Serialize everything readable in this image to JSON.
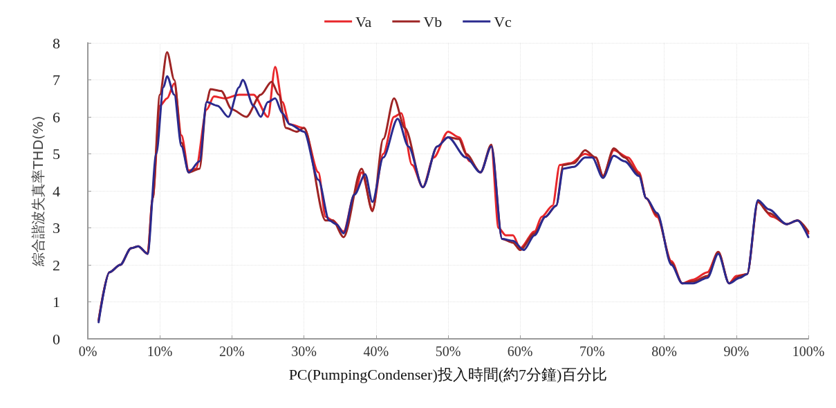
{
  "chart_data": {
    "type": "line",
    "xlabel": "PC(PumpingCondenser)投入時間(約7分鐘)百分比",
    "ylabel": "綜合諧波失真率THD(%)",
    "xlim": [
      0,
      100
    ],
    "xticks": [
      {
        "value": 0,
        "label": "0%"
      },
      {
        "value": 10,
        "label": "10%"
      },
      {
        "value": 20,
        "label": "20%"
      },
      {
        "value": 30,
        "label": "30%"
      },
      {
        "value": 40,
        "label": "40%"
      },
      {
        "value": 50,
        "label": "50%"
      },
      {
        "value": 60,
        "label": "60%"
      },
      {
        "value": 70,
        "label": "70%"
      },
      {
        "value": 80,
        "label": "80%"
      },
      {
        "value": 90,
        "label": "90%"
      },
      {
        "value": 100,
        "label": "100%"
      }
    ],
    "ylim": [
      0,
      8
    ],
    "yticks": [
      0,
      1,
      2,
      3,
      4,
      5,
      6,
      7,
      8
    ],
    "grid": true,
    "legend": "top",
    "marker": "none",
    "line_style": "solid",
    "series": [
      {
        "name": "Va",
        "color": "#e8262a",
        "x": [
          1.5,
          3,
          4.5,
          6,
          7,
          8.3,
          9,
          10,
          11,
          12,
          13,
          14,
          15,
          16.5,
          17.5,
          19,
          21,
          23,
          25,
          26,
          27,
          28,
          30,
          32,
          33,
          34,
          35.5,
          37,
          38,
          39.5,
          41,
          42.5,
          43.5,
          45,
          46.5,
          48,
          50,
          51.5,
          53,
          54.5,
          56,
          57,
          58,
          59,
          60,
          62,
          63,
          64.5,
          65.5,
          67,
          69,
          70.5,
          71.5,
          73,
          75,
          76.5,
          77.5,
          79,
          81,
          82.5,
          84,
          86,
          87.5,
          89,
          90,
          91.5,
          93,
          95,
          97,
          98.5,
          100
        ],
        "values": [
          0.5,
          1.8,
          2.0,
          2.45,
          2.5,
          2.3,
          3.8,
          6.3,
          6.5,
          6.9,
          5.5,
          4.55,
          4.6,
          6.2,
          6.55,
          6.5,
          6.6,
          6.6,
          6.0,
          7.35,
          6.4,
          5.8,
          5.7,
          4.5,
          3.3,
          3.2,
          2.9,
          3.9,
          4.5,
          3.5,
          5.0,
          6.0,
          6.1,
          4.7,
          4.1,
          4.9,
          5.6,
          5.45,
          4.8,
          4.5,
          5.2,
          3.0,
          2.8,
          2.8,
          2.45,
          2.9,
          3.3,
          3.6,
          4.7,
          4.75,
          5.0,
          4.9,
          4.4,
          5.1,
          4.9,
          4.5,
          3.8,
          3.3,
          2.1,
          1.5,
          1.6,
          1.8,
          2.35,
          1.5,
          1.7,
          1.75,
          3.7,
          3.3,
          3.1,
          3.2,
          2.85
        ]
      },
      {
        "name": "Vb",
        "color": "#9e2424",
        "x": [
          1.5,
          3,
          4.5,
          6,
          7,
          8.3,
          9,
          10,
          11,
          12,
          13,
          14,
          15.5,
          16.5,
          17,
          18.5,
          20,
          22,
          24,
          25.5,
          26.5,
          27.5,
          29,
          30,
          33,
          34,
          35.5,
          38,
          39.5,
          41,
          42.5,
          44,
          46.5,
          48.5,
          50,
          51.5,
          52.5,
          54.5,
          56,
          57.5,
          59,
          60,
          62,
          63.5,
          65,
          66,
          67.5,
          69,
          70.5,
          71.5,
          73,
          74.5,
          76.5,
          77.5,
          79,
          81,
          82.5,
          84,
          86,
          87.5,
          89,
          90.5,
          91.5,
          93,
          94.5,
          97,
          98.5,
          100
        ],
        "values": [
          0.5,
          1.8,
          2.0,
          2.45,
          2.5,
          2.3,
          3.8,
          6.6,
          7.75,
          7.0,
          5.3,
          4.5,
          4.6,
          6.4,
          6.75,
          6.7,
          6.2,
          6.0,
          6.6,
          6.95,
          6.6,
          5.7,
          5.6,
          5.7,
          3.2,
          3.2,
          2.75,
          4.6,
          3.45,
          5.4,
          6.5,
          5.7,
          4.1,
          5.2,
          5.45,
          5.4,
          5.0,
          4.5,
          5.25,
          2.7,
          2.6,
          2.4,
          2.85,
          3.3,
          3.6,
          4.7,
          4.75,
          5.1,
          4.9,
          4.4,
          5.15,
          4.9,
          4.45,
          3.8,
          3.35,
          2.05,
          1.5,
          1.55,
          1.7,
          2.35,
          1.5,
          1.7,
          1.75,
          3.7,
          3.4,
          3.1,
          3.2,
          2.9
        ]
      },
      {
        "name": "Vc",
        "color": "#2a2a8e",
        "x": [
          1.5,
          3,
          4.5,
          6,
          7,
          8.3,
          9.5,
          10.5,
          11,
          12,
          13,
          14,
          15.5,
          16.5,
          18,
          19.5,
          21,
          21.5,
          23,
          24,
          25,
          26,
          27,
          28,
          30,
          32,
          33.5,
          34.5,
          35.5,
          37,
          38.5,
          39.5,
          41,
          43,
          44.5,
          46.5,
          48.5,
          50,
          52.5,
          54.5,
          56,
          57.5,
          59,
          60.5,
          62,
          63.5,
          65,
          66,
          67.5,
          69,
          70,
          71.5,
          73,
          74.5,
          76.5,
          77.5,
          79,
          81,
          82.5,
          84,
          86,
          87.5,
          89,
          90.5,
          91.5,
          93,
          94.5,
          97,
          98.5,
          100
        ],
        "values": [
          0.45,
          1.8,
          2.0,
          2.45,
          2.5,
          2.3,
          5.0,
          6.8,
          7.1,
          6.6,
          5.2,
          4.5,
          4.8,
          6.4,
          6.3,
          6.0,
          6.8,
          7.0,
          6.3,
          6.0,
          6.4,
          6.5,
          6.1,
          5.8,
          5.6,
          4.3,
          3.2,
          3.1,
          2.85,
          3.9,
          4.45,
          3.7,
          4.9,
          5.95,
          5.2,
          4.1,
          5.2,
          5.45,
          4.9,
          4.5,
          5.2,
          2.7,
          2.65,
          2.4,
          2.8,
          3.3,
          3.6,
          4.6,
          4.65,
          4.9,
          4.9,
          4.35,
          4.95,
          4.8,
          4.4,
          3.8,
          3.4,
          2.0,
          1.5,
          1.5,
          1.65,
          2.3,
          1.5,
          1.65,
          1.75,
          3.75,
          3.5,
          3.1,
          3.2,
          2.75
        ]
      }
    ]
  }
}
